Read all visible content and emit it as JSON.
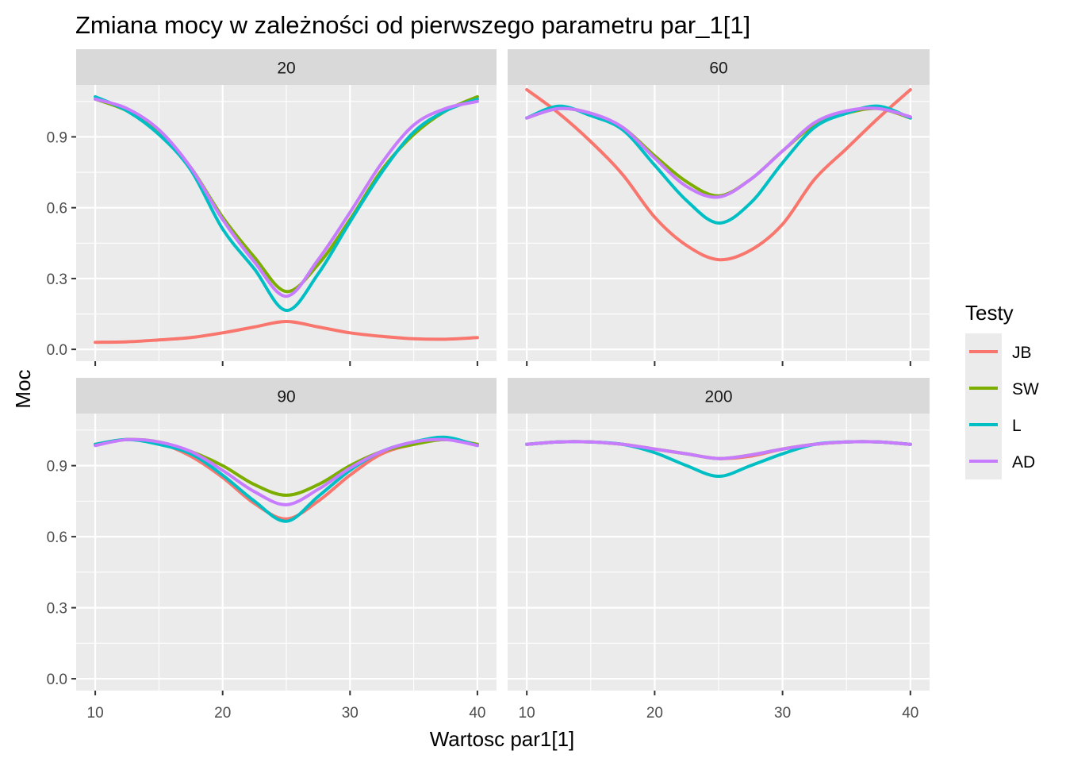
{
  "chart_data": {
    "type": "line",
    "title": "Zmiana mocy w zależności od pierwszego parametru par_1[1]",
    "xlabel": "Wartosc par1[1]",
    "ylabel": "Moc",
    "xlim": [
      8.5,
      41.5
    ],
    "ylim": [
      -0.05,
      1.12
    ],
    "x_ticks": [
      10,
      20,
      30,
      40
    ],
    "y_ticks": [
      0.0,
      0.3,
      0.6,
      0.9
    ],
    "y_tick_labels": [
      "0.0",
      "0.3",
      "0.6",
      "0.9"
    ],
    "grid": true,
    "legend": {
      "title": "Testy",
      "position": "right",
      "entries": [
        "JB",
        "SW",
        "L",
        "AD"
      ]
    },
    "colors": {
      "JB": "#F8766D",
      "SW": "#7CAE00",
      "L": "#00BFC4",
      "AD": "#C77CFF",
      "panel_bg": "#EBEBEB",
      "strip_bg": "#D9D9D9",
      "grid": "#FFFFFF"
    },
    "x": [
      10,
      12.5,
      15,
      17.5,
      20,
      22.5,
      25,
      27.5,
      30,
      32.5,
      35,
      37.5,
      40
    ],
    "panels": [
      {
        "label": "20",
        "series": [
          {
            "name": "JB",
            "values": [
              0.03,
              0.032,
              0.04,
              0.05,
              0.07,
              0.095,
              0.118,
              0.095,
              0.07,
              0.055,
              0.045,
              0.043,
              0.05
            ]
          },
          {
            "name": "SW",
            "values": [
              1.06,
              1.01,
              0.92,
              0.77,
              0.56,
              0.39,
              0.245,
              0.36,
              0.55,
              0.76,
              0.91,
              1.01,
              1.07
            ]
          },
          {
            "name": "L",
            "values": [
              1.07,
              1.01,
              0.91,
              0.76,
              0.51,
              0.34,
              0.165,
              0.32,
              0.54,
              0.75,
              0.92,
              1.01,
              1.06
            ]
          },
          {
            "name": "AD",
            "values": [
              1.06,
              1.02,
              0.93,
              0.77,
              0.55,
              0.37,
              0.225,
              0.38,
              0.58,
              0.79,
              0.95,
              1.02,
              1.05
            ]
          }
        ]
      },
      {
        "label": "60",
        "series": [
          {
            "name": "JB",
            "values": [
              1.1,
              1.0,
              0.88,
              0.74,
              0.56,
              0.44,
              0.38,
              0.42,
              0.53,
              0.72,
              0.85,
              0.98,
              1.1
            ]
          },
          {
            "name": "SW",
            "values": [
              0.98,
              1.02,
              1.0,
              0.94,
              0.82,
              0.71,
              0.65,
              0.72,
              0.84,
              0.95,
              1.0,
              1.02,
              0.98
            ]
          },
          {
            "name": "L",
            "values": [
              0.98,
              1.03,
              0.99,
              0.93,
              0.78,
              0.63,
              0.535,
              0.62,
              0.79,
              0.94,
              1.0,
              1.03,
              0.98
            ]
          },
          {
            "name": "AD",
            "values": [
              0.98,
              1.02,
              1.0,
              0.94,
              0.81,
              0.69,
              0.645,
              0.72,
              0.84,
              0.96,
              1.01,
              1.02,
              0.985
            ]
          }
        ]
      },
      {
        "label": "90",
        "series": [
          {
            "name": "JB",
            "values": [
              0.99,
              1.01,
              0.995,
              0.94,
              0.85,
              0.74,
              0.675,
              0.75,
              0.86,
              0.95,
              0.99,
              1.01,
              0.99
            ]
          },
          {
            "name": "SW",
            "values": [
              0.99,
              1.01,
              1.0,
              0.96,
              0.9,
              0.82,
              0.775,
              0.82,
              0.9,
              0.96,
              0.99,
              1.01,
              0.99
            ]
          },
          {
            "name": "L",
            "values": [
              0.99,
              1.01,
              0.99,
              0.95,
              0.86,
              0.75,
              0.665,
              0.77,
              0.88,
              0.96,
              1.0,
              1.02,
              0.985
            ]
          },
          {
            "name": "AD",
            "values": [
              0.985,
              1.01,
              1.0,
              0.96,
              0.88,
              0.79,
              0.735,
              0.8,
              0.89,
              0.96,
              1.0,
              1.01,
              0.985
            ]
          }
        ]
      },
      {
        "label": "200",
        "series": [
          {
            "name": "JB",
            "values": [
              0.99,
              1.0,
              1.0,
              0.99,
              0.97,
              0.95,
              0.93,
              0.94,
              0.97,
              0.99,
              1.0,
              1.0,
              0.99
            ]
          },
          {
            "name": "SW",
            "values": [
              0.99,
              1.0,
              1.0,
              0.99,
              0.97,
              0.95,
              0.93,
              0.945,
              0.97,
              0.99,
              1.0,
              1.0,
              0.99
            ]
          },
          {
            "name": "L",
            "values": [
              0.99,
              1.0,
              1.0,
              0.99,
              0.955,
              0.9,
              0.855,
              0.9,
              0.95,
              0.99,
              1.0,
              1.0,
              0.99
            ]
          },
          {
            "name": "AD",
            "values": [
              0.99,
              1.0,
              1.0,
              0.99,
              0.97,
              0.95,
              0.93,
              0.945,
              0.97,
              0.99,
              1.0,
              1.0,
              0.99
            ]
          }
        ]
      }
    ]
  }
}
